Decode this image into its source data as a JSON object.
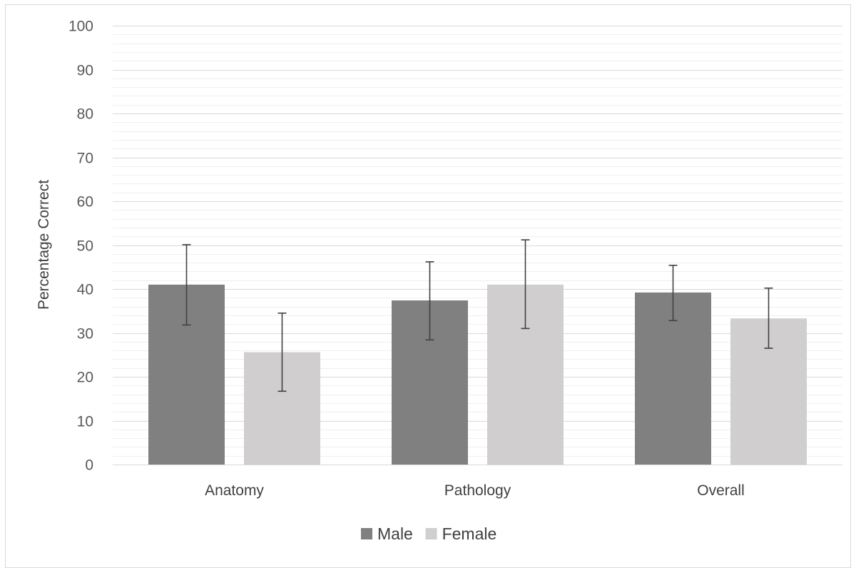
{
  "chart_data": {
    "type": "bar",
    "title": "",
    "xlabel": "",
    "ylabel": "Percentage Correct",
    "ylim": [
      0,
      100
    ],
    "y_major_step": 10,
    "y_minor_step": 2,
    "yticks": [
      "0",
      "10",
      "20",
      "30",
      "40",
      "50",
      "60",
      "70",
      "80",
      "90",
      "100"
    ],
    "categories": [
      "Anatomy",
      "Pathology",
      "Overall"
    ],
    "series": [
      {
        "name": "Male",
        "color": "#808080",
        "values": [
          41.0,
          37.4,
          39.2
        ],
        "error_low": [
          31.8,
          28.4,
          32.8
        ],
        "error_high": [
          50.1,
          46.2,
          45.4
        ]
      },
      {
        "name": "Female",
        "color": "#d0cece",
        "values": [
          25.6,
          41.0,
          33.3
        ],
        "error_low": [
          16.7,
          31.0,
          26.5
        ],
        "error_high": [
          34.5,
          51.2,
          40.2
        ]
      }
    ],
    "legend_position": "bottom",
    "grid": true
  }
}
